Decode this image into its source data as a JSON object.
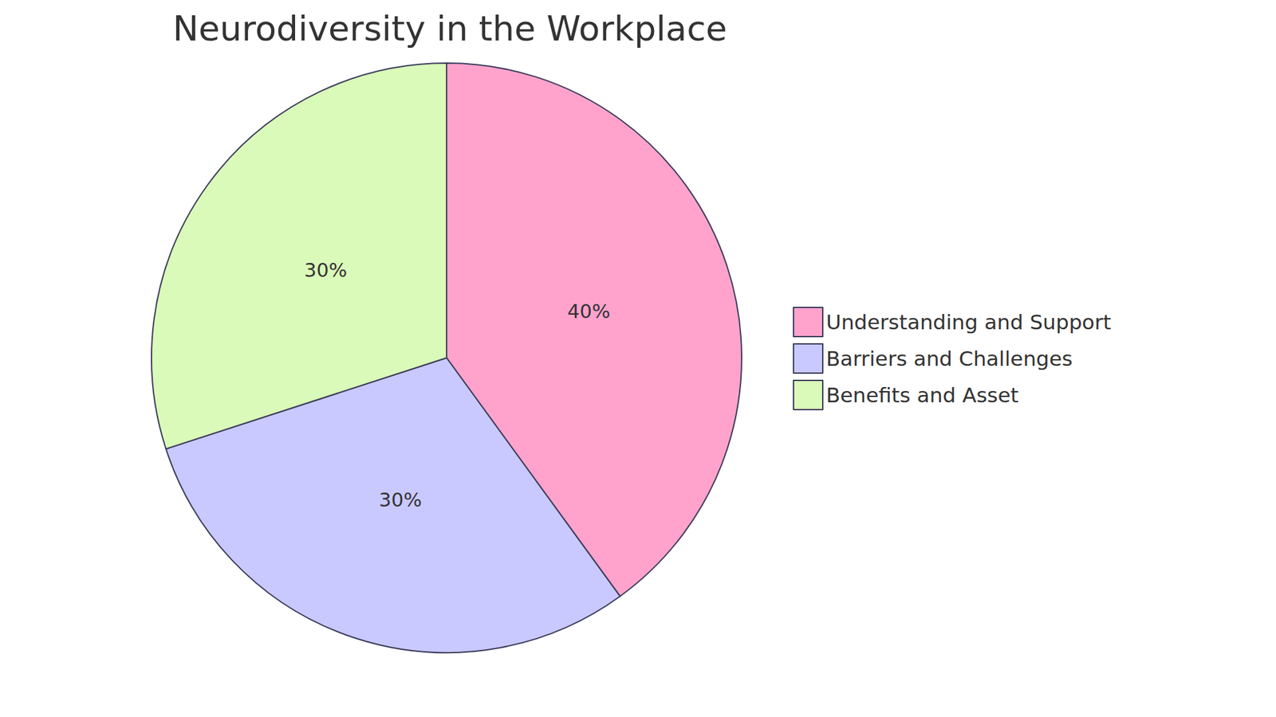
{
  "chart_data": {
    "type": "pie",
    "title": "Neurodiversity in the Workplace",
    "categories": [
      "Understanding and Support",
      "Barriers and Challenges",
      "Benefits and Asset"
    ],
    "values": [
      40,
      30,
      30
    ],
    "value_labels": [
      "40%",
      "30%",
      "30%"
    ],
    "colors": [
      "#ffa3cd",
      "#c9c9ff",
      "#dafab9"
    ],
    "data_labels": true,
    "legend": "right"
  }
}
